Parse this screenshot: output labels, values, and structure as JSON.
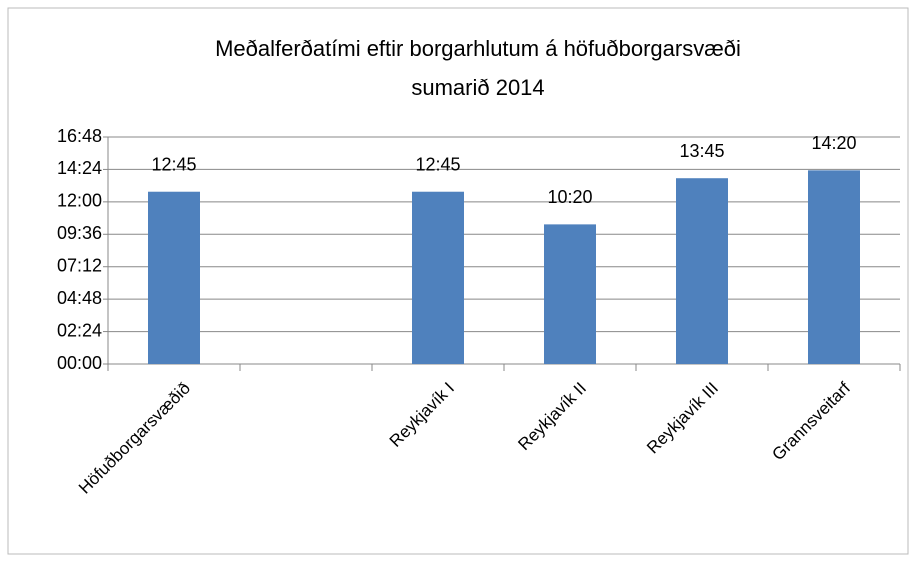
{
  "chart_data": {
    "type": "bar",
    "title": [
      "Meðalferðatími eftir borgarhlutum á höfuðborgarsvæði",
      "sumarið 2014"
    ],
    "categories": [
      "Höfuðborgarsvæðið",
      null,
      "Reykjavík I",
      "Reykjavík II",
      "Reykjavík III",
      "Grannsveitarf"
    ],
    "values": [
      765,
      null,
      765,
      620,
      825,
      860
    ],
    "value_labels": [
      "12:45",
      null,
      "12:45",
      "10:20",
      "13:45",
      "14:20"
    ],
    "color": "#4f81bd",
    "ylim": [
      0,
      1008
    ],
    "yticks": [
      {
        "value": 0,
        "label": "00:00"
      },
      {
        "value": 144,
        "label": "02:24"
      },
      {
        "value": 288,
        "label": "04:48"
      },
      {
        "value": 432,
        "label": "07:12"
      },
      {
        "value": 576,
        "label": "09:36"
      },
      {
        "value": 720,
        "label": "12:00"
      },
      {
        "value": 864,
        "label": "14:24"
      },
      {
        "value": 1008,
        "label": "16:48"
      }
    ],
    "grid": true
  }
}
